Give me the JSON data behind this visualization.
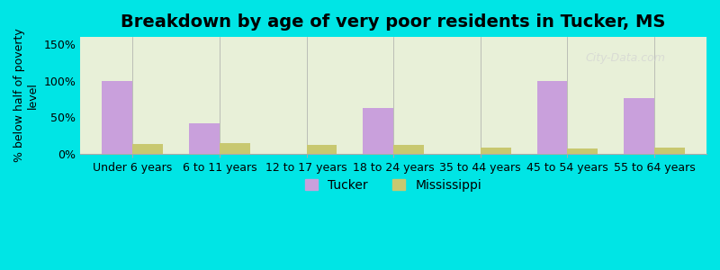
{
  "title": "Breakdown by age of very poor residents in Tucker, MS",
  "ylabel": "% below half of poverty\nlevel",
  "categories": [
    "Under 6 years",
    "6 to 11 years",
    "12 to 17 years",
    "18 to 24 years",
    "35 to 44 years",
    "45 to 54 years",
    "55 to 64 years"
  ],
  "tucker_values": [
    100,
    42,
    0,
    63,
    0,
    100,
    76
  ],
  "mississippi_values": [
    13,
    15,
    12,
    12,
    8,
    7,
    8
  ],
  "tucker_color": "#c9a0dc",
  "mississippi_color": "#c8c870",
  "background_outer": "#00e5e5",
  "background_inner": "#e8f0d8",
  "ylim": [
    0,
    160
  ],
  "yticks": [
    0,
    50,
    100,
    150
  ],
  "ytick_labels": [
    "0%",
    "50%",
    "100%",
    "150%"
  ],
  "bar_width": 0.35,
  "title_fontsize": 14,
  "axis_fontsize": 9,
  "legend_fontsize": 10,
  "watermark": "City-Data.com"
}
